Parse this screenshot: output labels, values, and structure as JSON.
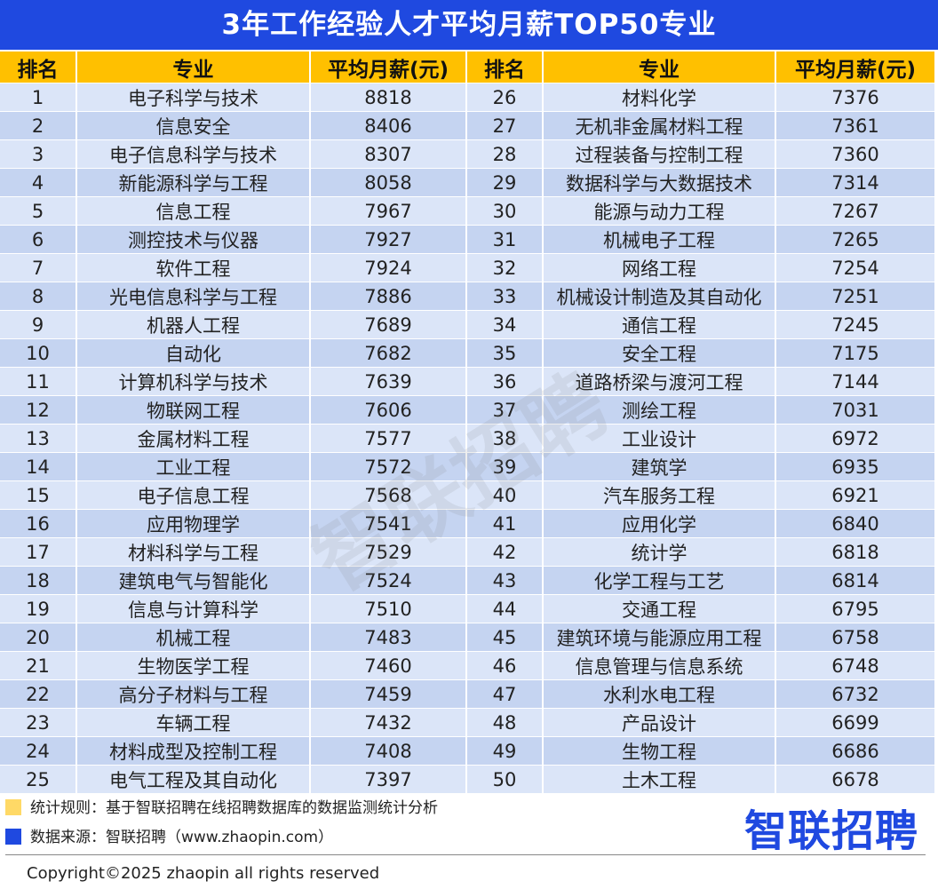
{
  "title": "3年工作经验人才平均月薪TOP50专业",
  "headers": {
    "rank": "排名",
    "major": "专业",
    "salary": "平均月薪(元)"
  },
  "rows": [
    {
      "rank_a": "1",
      "major_a": "电子科学与技术",
      "salary_a": "8818",
      "rank_b": "26",
      "major_b": "材料化学",
      "salary_b": "7376"
    },
    {
      "rank_a": "2",
      "major_a": "信息安全",
      "salary_a": "8406",
      "rank_b": "27",
      "major_b": "无机非金属材料工程",
      "salary_b": "7361"
    },
    {
      "rank_a": "3",
      "major_a": "电子信息科学与技术",
      "salary_a": "8307",
      "rank_b": "28",
      "major_b": "过程装备与控制工程",
      "salary_b": "7360"
    },
    {
      "rank_a": "4",
      "major_a": "新能源科学与工程",
      "salary_a": "8058",
      "rank_b": "29",
      "major_b": "数据科学与大数据技术",
      "salary_b": "7314"
    },
    {
      "rank_a": "5",
      "major_a": "信息工程",
      "salary_a": "7967",
      "rank_b": "30",
      "major_b": "能源与动力工程",
      "salary_b": "7267"
    },
    {
      "rank_a": "6",
      "major_a": "测控技术与仪器",
      "salary_a": "7927",
      "rank_b": "31",
      "major_b": "机械电子工程",
      "salary_b": "7265"
    },
    {
      "rank_a": "7",
      "major_a": "软件工程",
      "salary_a": "7924",
      "rank_b": "32",
      "major_b": "网络工程",
      "salary_b": "7254"
    },
    {
      "rank_a": "8",
      "major_a": "光电信息科学与工程",
      "salary_a": "7886",
      "rank_b": "33",
      "major_b": "机械设计制造及其自动化",
      "salary_b": "7251"
    },
    {
      "rank_a": "9",
      "major_a": "机器人工程",
      "salary_a": "7689",
      "rank_b": "34",
      "major_b": "通信工程",
      "salary_b": "7245"
    },
    {
      "rank_a": "10",
      "major_a": "自动化",
      "salary_a": "7682",
      "rank_b": "35",
      "major_b": "安全工程",
      "salary_b": "7175"
    },
    {
      "rank_a": "11",
      "major_a": "计算机科学与技术",
      "salary_a": "7639",
      "rank_b": "36",
      "major_b": "道路桥梁与渡河工程",
      "salary_b": "7144"
    },
    {
      "rank_a": "12",
      "major_a": "物联网工程",
      "salary_a": "7606",
      "rank_b": "37",
      "major_b": "测绘工程",
      "salary_b": "7031"
    },
    {
      "rank_a": "13",
      "major_a": "金属材料工程",
      "salary_a": "7577",
      "rank_b": "38",
      "major_b": "工业设计",
      "salary_b": "6972"
    },
    {
      "rank_a": "14",
      "major_a": "工业工程",
      "salary_a": "7572",
      "rank_b": "39",
      "major_b": "建筑学",
      "salary_b": "6935"
    },
    {
      "rank_a": "15",
      "major_a": "电子信息工程",
      "salary_a": "7568",
      "rank_b": "40",
      "major_b": "汽车服务工程",
      "salary_b": "6921"
    },
    {
      "rank_a": "16",
      "major_a": "应用物理学",
      "salary_a": "7541",
      "rank_b": "41",
      "major_b": "应用化学",
      "salary_b": "6840"
    },
    {
      "rank_a": "17",
      "major_a": "材料科学与工程",
      "salary_a": "7529",
      "rank_b": "42",
      "major_b": "统计学",
      "salary_b": "6818"
    },
    {
      "rank_a": "18",
      "major_a": "建筑电气与智能化",
      "salary_a": "7524",
      "rank_b": "43",
      "major_b": "化学工程与工艺",
      "salary_b": "6814"
    },
    {
      "rank_a": "19",
      "major_a": "信息与计算科学",
      "salary_a": "7510",
      "rank_b": "44",
      "major_b": "交通工程",
      "salary_b": "6795"
    },
    {
      "rank_a": "20",
      "major_a": "机械工程",
      "salary_a": "7483",
      "rank_b": "45",
      "major_b": "建筑环境与能源应用工程",
      "salary_b": "6758"
    },
    {
      "rank_a": "21",
      "major_a": "生物医学工程",
      "salary_a": "7460",
      "rank_b": "46",
      "major_b": "信息管理与信息系统",
      "salary_b": "6748"
    },
    {
      "rank_a": "22",
      "major_a": "高分子材料与工程",
      "salary_a": "7459",
      "rank_b": "47",
      "major_b": "水利水电工程",
      "salary_b": "6732"
    },
    {
      "rank_a": "23",
      "major_a": "车辆工程",
      "salary_a": "7432",
      "rank_b": "48",
      "major_b": "产品设计",
      "salary_b": "6699"
    },
    {
      "rank_a": "24",
      "major_a": "材料成型及控制工程",
      "salary_a": "7408",
      "rank_b": "49",
      "major_b": "生物工程",
      "salary_b": "6686"
    },
    {
      "rank_a": "25",
      "major_a": "电气工程及其自动化",
      "salary_a": "7397",
      "rank_b": "50",
      "major_b": "土木工程",
      "salary_b": "6678"
    }
  ],
  "watermark": "智联招聘",
  "notes": {
    "rule": "统计规则：基于智联招聘在线招聘数据库的数据监测统计分析",
    "source": "数据来源：智联招聘（www.zhaopin.com）"
  },
  "logo_text": "智联招聘",
  "copyright": "Copyright©2025 zhaopin all rights reserved",
  "colors": {
    "title_bg": "#1f49e0",
    "header_bg": "#ffc000",
    "row_light": "#dbe5f8",
    "row_dark": "#c5d4f1",
    "note_rule_swatch": "#ffd966",
    "note_source_swatch": "#1f49e0"
  }
}
